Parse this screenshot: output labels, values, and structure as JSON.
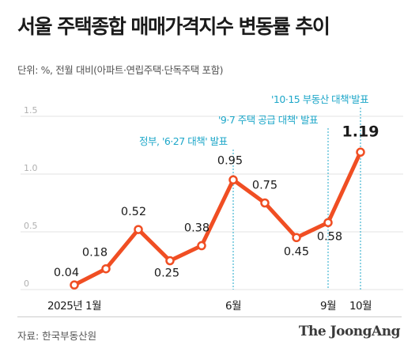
{
  "title": "서울 주택종합 매매가격지수 변동률 추이",
  "subtitle": "단위: %, 전월 대비(아파트·연립주택·단독주택 포함)",
  "source": "자료: 한국부동산원",
  "brand": "The JoongAng",
  "colors": {
    "line": "#f04e23",
    "annotation": "#1ea7c9",
    "grid": "#e3e3e3",
    "axis_text": "#b0b0b0"
  },
  "chart_data": {
    "type": "line",
    "x": [
      "2025-01",
      "2025-02",
      "2025-03",
      "2025-04",
      "2025-05",
      "2025-06",
      "2025-07",
      "2025-08",
      "2025-09",
      "2025-10"
    ],
    "values": [
      0.04,
      0.18,
      0.52,
      0.25,
      0.38,
      0.95,
      0.75,
      0.45,
      0.58,
      1.19
    ],
    "value_labels": [
      "0.04",
      "0.18",
      "0.52",
      "0.25",
      "0.38",
      "0.95",
      "0.75",
      "0.45",
      "0.58",
      "1.19"
    ],
    "x_tick_labels": [
      {
        "index": 0,
        "label": "2025년 1월"
      },
      {
        "index": 5,
        "label": "6월"
      },
      {
        "index": 8,
        "label": "9월"
      },
      {
        "index": 9,
        "label": "10월"
      }
    ],
    "y_ticks": [
      {
        "value": 0,
        "label": "0"
      },
      {
        "value": 0.5,
        "label": "0.5"
      },
      {
        "value": 1.0,
        "label": "1.0"
      },
      {
        "value": 1.5,
        "label": "1.5"
      }
    ],
    "ylim": [
      0,
      1.5
    ],
    "grid": true,
    "annotations": [
      {
        "index": 5,
        "text": "정부, '6·27 대책' 발표"
      },
      {
        "index": 8,
        "text": "'9·7 주택 공급 대책' 발표"
      },
      {
        "index": 9,
        "text": "'10·15 부동산 대책'발표"
      }
    ]
  }
}
